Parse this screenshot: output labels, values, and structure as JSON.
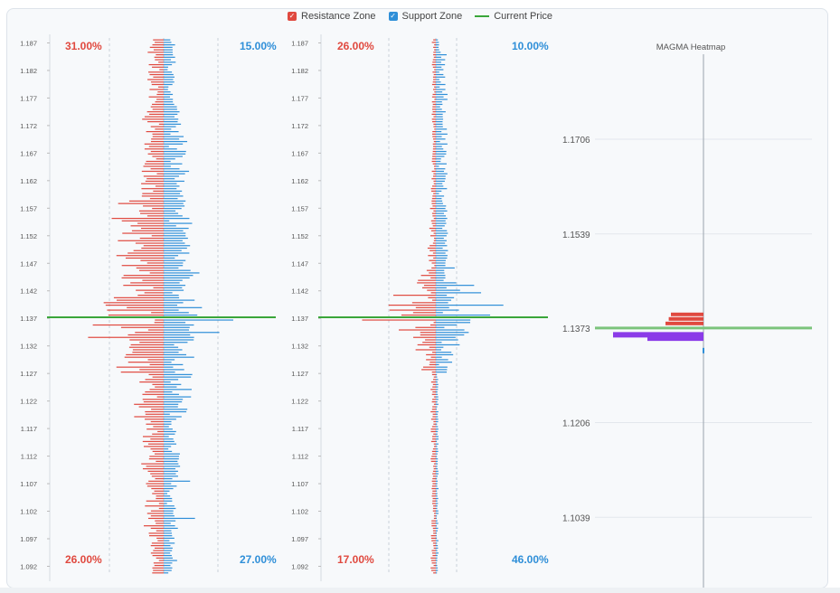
{
  "legend": {
    "resistance_label": "Resistance Zone",
    "support_label": "Support Zone",
    "current_label": "Current Price",
    "check_glyph": "✓"
  },
  "colors": {
    "resistance": "#e0493f",
    "support": "#2f8fd8",
    "current": "#3aa63a",
    "heatmap_bid": "#8b3be8",
    "heatmap_line": "#7cc47c"
  },
  "chart_data": [
    {
      "type": "bar",
      "orientation": "horizontal-diverging",
      "y_ticks": [
        "1.187",
        "1.182",
        "1.177",
        "1.172",
        "1.167",
        "1.162",
        "1.157",
        "1.152",
        "1.147",
        "1.142",
        "1.137",
        "1.132",
        "1.127",
        "1.122",
        "1.117",
        "1.112",
        "1.107",
        "1.102",
        "1.097",
        "1.092"
      ],
      "ylim": [
        1.0906,
        1.1879
      ],
      "current_price": 1.1372,
      "top_left_pct": "31.00%",
      "top_right_pct": "15.00%",
      "bottom_left_pct": "26.00%",
      "bottom_right_pct": "27.00%",
      "resistance_scale": 1.0,
      "support_scale": 1.0,
      "support_spikes": [
        [
          1.1365,
          1.0
        ],
        [
          1.1343,
          0.8
        ],
        [
          1.1388,
          0.55
        ],
        [
          1.1005,
          0.45
        ],
        [
          1.1073,
          0.38
        ]
      ],
      "resistance_spikes": [
        [
          1.1372,
          1.0
        ],
        [
          1.1358,
          0.75
        ],
        [
          1.1335,
          0.8
        ],
        [
          1.1283,
          0.5
        ],
        [
          1.1483,
          0.5
        ],
        [
          1.1553,
          0.55
        ]
      ]
    },
    {
      "type": "bar",
      "orientation": "horizontal-diverging",
      "y_ticks": [
        "1.187",
        "1.182",
        "1.177",
        "1.172",
        "1.167",
        "1.162",
        "1.157",
        "1.152",
        "1.147",
        "1.142",
        "1.137",
        "1.132",
        "1.127",
        "1.122",
        "1.117",
        "1.112",
        "1.107",
        "1.102",
        "1.097",
        "1.092"
      ],
      "ylim": [
        1.0906,
        1.1879
      ],
      "current_price": 1.1372,
      "top_left_pct": "26.00%",
      "top_right_pct": "10.00%",
      "bottom_left_pct": "17.00%",
      "bottom_right_pct": "46.00%",
      "resistance_scale": 0.45,
      "support_scale": 0.4,
      "support_spikes": [
        [
          1.1372,
          1.0
        ],
        [
          1.1395,
          0.97
        ],
        [
          1.1378,
          0.78
        ],
        [
          1.1418,
          0.65
        ],
        [
          1.143,
          0.55
        ]
      ],
      "resistance_spikes": [
        [
          1.1372,
          1.0
        ],
        [
          1.1365,
          0.78
        ],
        [
          1.1395,
          0.5
        ],
        [
          1.141,
          0.45
        ]
      ]
    },
    {
      "type": "heatmap",
      "title": "MAGMA Heatmap",
      "y_ticks": [
        "1.1706",
        "1.1539",
        "1.1373",
        "1.1206",
        "1.1039"
      ],
      "ylim": [
        1.0915,
        1.1856
      ],
      "current_price": 1.1373,
      "bid_bands": [
        [
          1.1361,
          1.0
        ],
        [
          1.1355,
          0.62
        ]
      ],
      "ask_bands": [
        [
          1.1397,
          0.3
        ],
        [
          1.1389,
          0.32
        ],
        [
          1.1381,
          0.35
        ]
      ]
    }
  ]
}
